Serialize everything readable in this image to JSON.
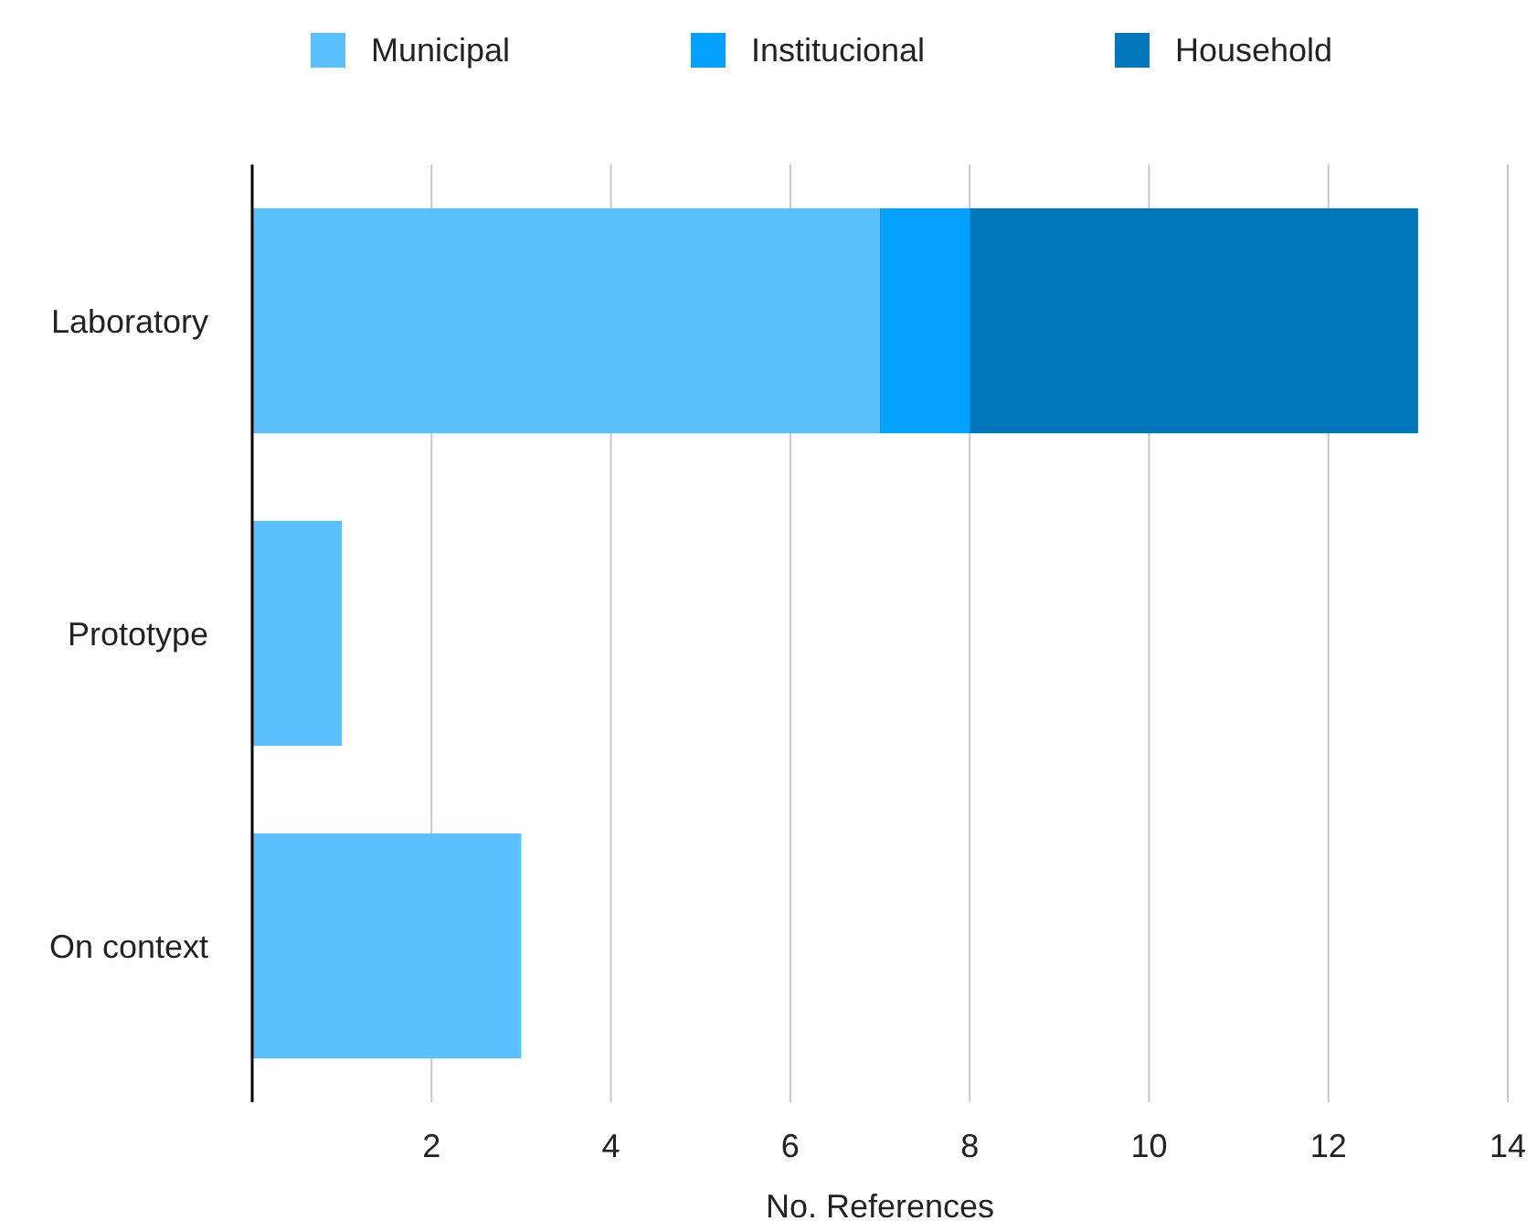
{
  "chart_data": {
    "type": "bar",
    "orientation": "horizontal",
    "stacked": true,
    "xlabel": "No. References",
    "categories": [
      "Laboratory",
      "Prototype",
      "On context"
    ],
    "series": [
      {
        "name": "Municipal",
        "color": "#5ac0fe",
        "values": [
          7,
          1,
          3
        ]
      },
      {
        "name": "Institucional",
        "color": "#04a1fe",
        "values": [
          1,
          null,
          null
        ]
      },
      {
        "name": "Household",
        "color": "#0077bb",
        "values": [
          5,
          null,
          null
        ]
      }
    ],
    "xlim": [
      0,
      14
    ],
    "xticks": [
      2,
      4,
      6,
      8,
      10,
      12,
      14
    ],
    "grid": "x",
    "legend": "top"
  }
}
